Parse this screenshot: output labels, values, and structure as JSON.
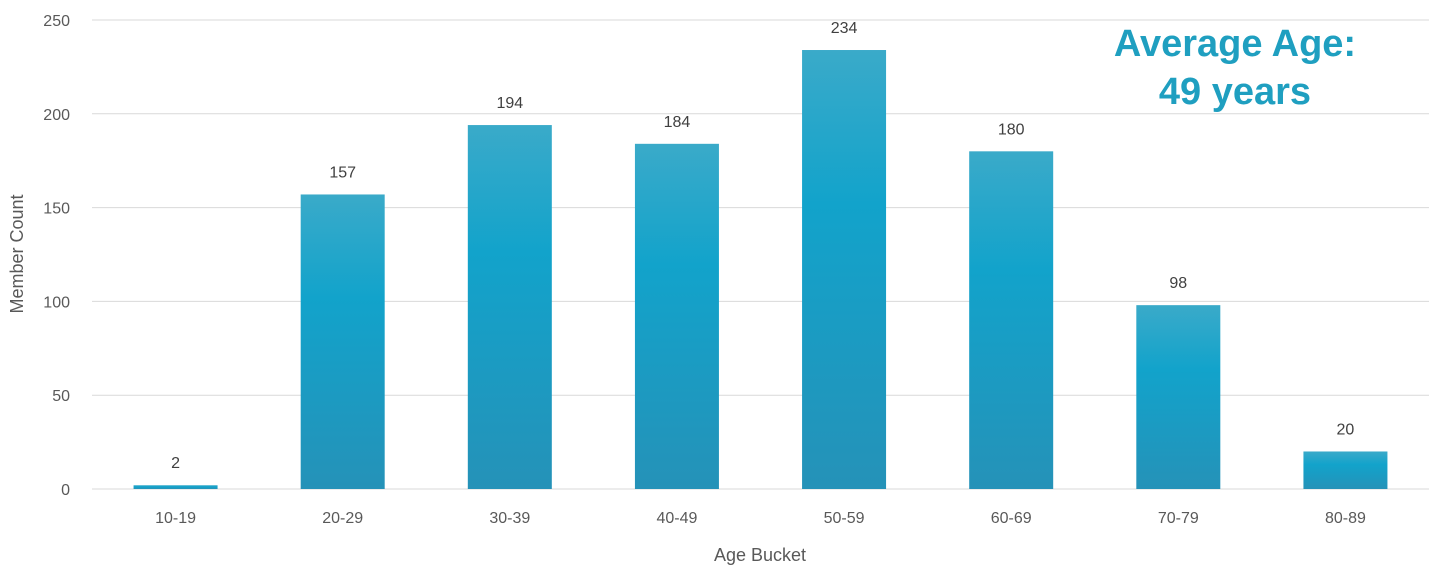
{
  "colors": {
    "bar": "#1aa0c8",
    "grid": "#d9d9d9",
    "annotation": "#1f9fc0"
  },
  "annotation": {
    "line1": "Average Age:",
    "line2": "49 years"
  },
  "chart_data": {
    "type": "bar",
    "title": "",
    "xlabel": "Age Bucket",
    "ylabel": "Member Count",
    "categories": [
      "10-19",
      "20-29",
      "30-39",
      "40-49",
      "50-59",
      "60-69",
      "70-79",
      "80-89"
    ],
    "values": [
      2,
      157,
      194,
      184,
      234,
      180,
      98,
      20
    ],
    "data_labels": [
      "2",
      "157",
      "194",
      "184",
      "234",
      "180",
      "98",
      "20"
    ],
    "ylim": [
      0,
      250
    ],
    "yticks": [
      0,
      50,
      100,
      150,
      200,
      250
    ],
    "ytick_labels": [
      "0",
      "50",
      "100",
      "150",
      "200",
      "250"
    ],
    "grid": true,
    "legend": "none"
  }
}
